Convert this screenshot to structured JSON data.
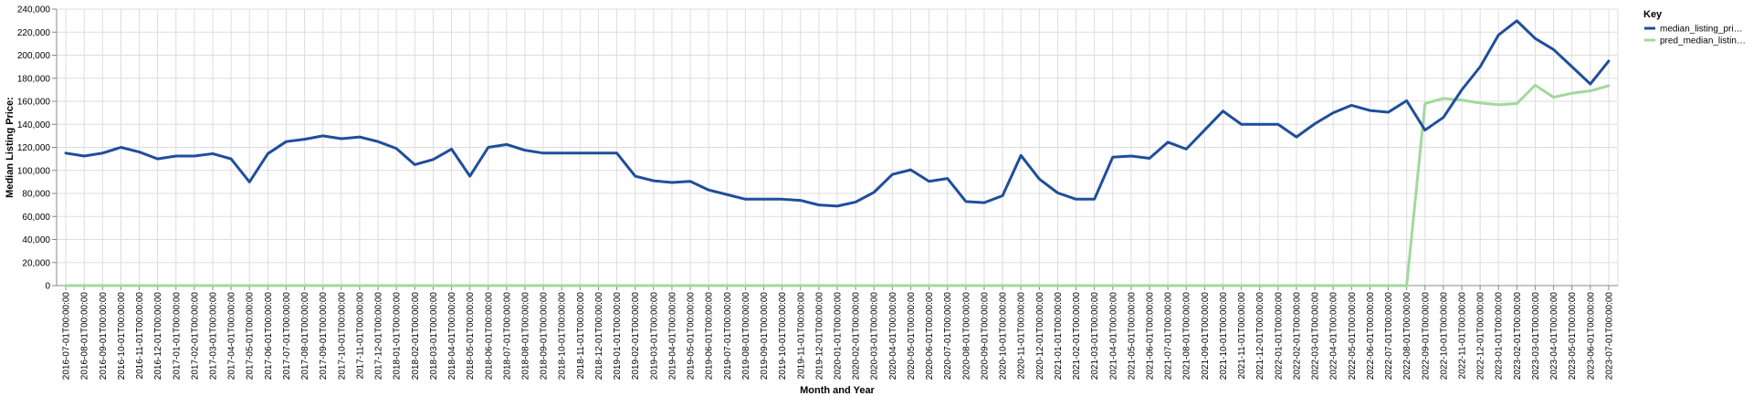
{
  "chart_data": {
    "type": "line",
    "xlabel": "Month and Year",
    "ylabel": "Median Listing Price:",
    "ylim": [
      0,
      240000
    ],
    "y_ticks": [
      "0",
      "20,000",
      "40,000",
      "60,000",
      "80,000",
      "100,000",
      "120,000",
      "140,000",
      "160,000",
      "180,000",
      "200,000",
      "220,000",
      "240,000"
    ],
    "grid": true,
    "legend": {
      "title": "Key",
      "placement": "right"
    },
    "x": [
      "2016-07-01T00:00:00",
      "2016-08-01T00:00:00",
      "2016-09-01T00:00:00",
      "2016-10-01T00:00:00",
      "2016-11-01T00:00:00",
      "2016-12-01T00:00:00",
      "2017-01-01T00:00:00",
      "2017-02-01T00:00:00",
      "2017-03-01T00:00:00",
      "2017-04-01T00:00:00",
      "2017-05-01T00:00:00",
      "2017-06-01T00:00:00",
      "2017-07-01T00:00:00",
      "2017-08-01T00:00:00",
      "2017-09-01T00:00:00",
      "2017-10-01T00:00:00",
      "2017-11-01T00:00:00",
      "2017-12-01T00:00:00",
      "2018-01-01T00:00:00",
      "2018-02-01T00:00:00",
      "2018-03-01T00:00:00",
      "2018-04-01T00:00:00",
      "2018-05-01T00:00:00",
      "2018-06-01T00:00:00",
      "2018-07-01T00:00:00",
      "2018-08-01T00:00:00",
      "2018-09-01T00:00:00",
      "2018-10-01T00:00:00",
      "2018-11-01T00:00:00",
      "2018-12-01T00:00:00",
      "2019-01-01T00:00:00",
      "2019-02-01T00:00:00",
      "2019-03-01T00:00:00",
      "2019-04-01T00:00:00",
      "2019-05-01T00:00:00",
      "2019-06-01T00:00:00",
      "2019-07-01T00:00:00",
      "2019-08-01T00:00:00",
      "2019-09-01T00:00:00",
      "2019-10-01T00:00:00",
      "2019-11-01T00:00:00",
      "2019-12-01T00:00:00",
      "2020-01-01T00:00:00",
      "2020-02-01T00:00:00",
      "2020-03-01T00:00:00",
      "2020-04-01T00:00:00",
      "2020-05-01T00:00:00",
      "2020-06-01T00:00:00",
      "2020-07-01T00:00:00",
      "2020-08-01T00:00:00",
      "2020-09-01T00:00:00",
      "2020-10-01T00:00:00",
      "2020-11-01T00:00:00",
      "2020-12-01T00:00:00",
      "2021-01-01T00:00:00",
      "2021-02-01T00:00:00",
      "2021-03-01T00:00:00",
      "2021-04-01T00:00:00",
      "2021-05-01T00:00:00",
      "2021-06-01T00:00:00",
      "2021-07-01T00:00:00",
      "2021-08-01T00:00:00",
      "2021-09-01T00:00:00",
      "2021-10-01T00:00:00",
      "2021-11-01T00:00:00",
      "2021-12-01T00:00:00",
      "2022-01-01T00:00:00",
      "2022-02-01T00:00:00",
      "2022-03-01T00:00:00",
      "2022-04-01T00:00:00",
      "2022-05-01T00:00:00",
      "2022-06-01T00:00:00",
      "2022-07-01T00:00:00",
      "2022-08-01T00:00:00",
      "2022-09-01T00:00:00",
      "2022-10-01T00:00:00",
      "2022-11-01T00:00:00",
      "2022-12-01T00:00:00",
      "2023-01-01T00:00:00",
      "2023-02-01T00:00:00",
      "2023-03-01T00:00:00",
      "2023-04-01T00:00:00",
      "2023-05-01T00:00:00",
      "2023-06-01T00:00:00",
      "2023-07-01T00:00:00"
    ],
    "series": [
      {
        "name": "median_listing_pri…",
        "color": "#1f4e9c",
        "values": [
          115000,
          112500,
          115000,
          120000,
          116000,
          110000,
          112500,
          112500,
          114500,
          110000,
          90000,
          114500,
          125000,
          127000,
          130000,
          127500,
          129000,
          125000,
          119000,
          105000,
          109500,
          118500,
          95000,
          120000,
          122500,
          117500,
          115000,
          115000,
          115000,
          115000,
          115000,
          95000,
          91000,
          89500,
          90500,
          83000,
          79000,
          75000,
          75000,
          75000,
          74000,
          70000,
          69000,
          72500,
          81000,
          96500,
          100500,
          90500,
          93000,
          73000,
          72000,
          78000,
          113000,
          92500,
          80500,
          75000,
          75000,
          111500,
          112500,
          110500,
          124500,
          118500,
          135000,
          151500,
          140000,
          140000,
          140000,
          129000,
          140500,
          150000,
          156500,
          152000,
          150500,
          160500,
          135000,
          146000,
          169900,
          189900,
          217500,
          229900,
          214500,
          204900,
          190000,
          175000,
          194900
        ]
      },
      {
        "name": "pred_median_listin…",
        "color": "#a1d99b",
        "values": [
          0,
          0,
          0,
          0,
          0,
          0,
          0,
          0,
          0,
          0,
          0,
          0,
          0,
          0,
          0,
          0,
          0,
          0,
          0,
          0,
          0,
          0,
          0,
          0,
          0,
          0,
          0,
          0,
          0,
          0,
          0,
          0,
          0,
          0,
          0,
          0,
          0,
          0,
          0,
          0,
          0,
          0,
          0,
          0,
          0,
          0,
          0,
          0,
          0,
          0,
          0,
          0,
          0,
          0,
          0,
          0,
          0,
          0,
          0,
          0,
          0,
          0,
          0,
          0,
          0,
          0,
          0,
          0,
          0,
          0,
          0,
          0,
          0,
          0,
          158000,
          162500,
          161000,
          158500,
          157000,
          158000,
          174000,
          163500,
          167000,
          169000,
          173500
        ]
      }
    ]
  }
}
